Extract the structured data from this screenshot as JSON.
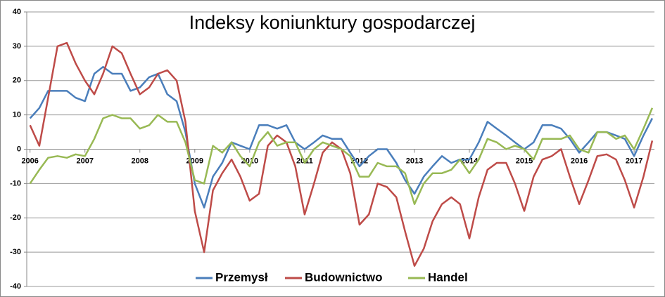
{
  "chart_data": {
    "type": "line",
    "title": "Indeksy koniunktury gospodarczej",
    "x": [
      2006,
      2006.17,
      2006.33,
      2006.5,
      2006.67,
      2006.83,
      2007,
      2007.17,
      2007.33,
      2007.5,
      2007.67,
      2007.83,
      2008,
      2008.17,
      2008.33,
      2008.5,
      2008.67,
      2008.83,
      2009,
      2009.17,
      2009.33,
      2009.5,
      2009.67,
      2009.83,
      2010,
      2010.17,
      2010.33,
      2010.5,
      2010.67,
      2010.83,
      2011,
      2011.17,
      2011.33,
      2011.5,
      2011.67,
      2011.83,
      2012,
      2012.17,
      2012.33,
      2012.5,
      2012.67,
      2012.83,
      2013,
      2013.17,
      2013.33,
      2013.5,
      2013.67,
      2013.83,
      2014,
      2014.17,
      2014.33,
      2014.5,
      2014.67,
      2014.83,
      2015,
      2015.17,
      2015.33,
      2015.5,
      2015.67,
      2015.83,
      2016,
      2016.17,
      2016.33,
      2016.5,
      2016.67,
      2016.83,
      2017,
      2017.17,
      2017.33
    ],
    "series": [
      {
        "name": "Przemysł",
        "color": "#4a7ebb",
        "values": [
          9,
          12,
          17,
          17,
          17,
          15,
          14,
          22,
          24,
          22,
          22,
          17,
          18,
          21,
          22,
          16,
          14,
          5,
          -10,
          -17,
          -8,
          -4,
          2,
          1,
          0,
          7,
          7,
          6,
          7,
          2,
          0,
          2,
          4,
          3,
          3,
          -1,
          -5,
          -2,
          0,
          0,
          -4,
          -9,
          -13,
          -8,
          -5,
          -2,
          -4,
          -3,
          -3,
          2,
          8,
          6,
          4,
          2,
          0,
          2,
          7,
          7,
          6,
          3,
          -1,
          2,
          5,
          5,
          4,
          3,
          -2,
          4,
          9
        ]
      },
      {
        "name": "Budownictwo",
        "color": "#be4b48",
        "values": [
          7,
          1,
          15,
          30,
          31,
          25,
          20,
          16,
          22,
          30,
          28,
          22,
          16,
          18,
          22,
          23,
          20,
          8,
          -18,
          -30,
          -12,
          -7,
          -3,
          -8,
          -15,
          -13,
          1,
          4,
          2,
          -5,
          -19,
          -10,
          -1,
          2,
          0,
          -7,
          -22,
          -19,
          -10,
          -11,
          -14,
          -24,
          -34,
          -29,
          -21,
          -16,
          -14,
          -16,
          -26,
          -14,
          -6,
          -4,
          -4,
          -10,
          -18,
          -8,
          -3,
          -2,
          0,
          -8,
          -16,
          -9,
          -2,
          -1.5,
          -3,
          -9,
          -17,
          -8,
          2.5
        ]
      },
      {
        "name": "Handel",
        "color": "#98b954",
        "values": [
          -10,
          -6,
          -2.5,
          -2,
          -2.5,
          -1.5,
          -2,
          3,
          9,
          10,
          9,
          9,
          6,
          7,
          10,
          8,
          8,
          2,
          -9,
          -10,
          1,
          -1,
          2,
          -2,
          -5,
          2,
          5,
          1,
          2,
          2,
          -4,
          0,
          2,
          1,
          0,
          -2,
          -8,
          -8,
          -4,
          -5,
          -5,
          -7,
          -16,
          -10,
          -7,
          -7,
          -6,
          -3,
          -7,
          -3,
          3,
          2,
          0,
          1,
          0,
          -3,
          3,
          3,
          3,
          4,
          0,
          -1,
          5,
          5,
          3,
          4,
          0,
          6,
          12
        ]
      }
    ],
    "xlim": [
      2005.94,
      2017.37
    ],
    "xticks": [
      2006,
      2007,
      2008,
      2009,
      2010,
      2011,
      2012,
      2013,
      2014,
      2015,
      2016,
      2017
    ],
    "ylim": [
      -40,
      40
    ],
    "yticks": [
      -40,
      -30,
      -20,
      -10,
      0,
      10,
      20,
      30,
      40
    ],
    "grid": true
  }
}
